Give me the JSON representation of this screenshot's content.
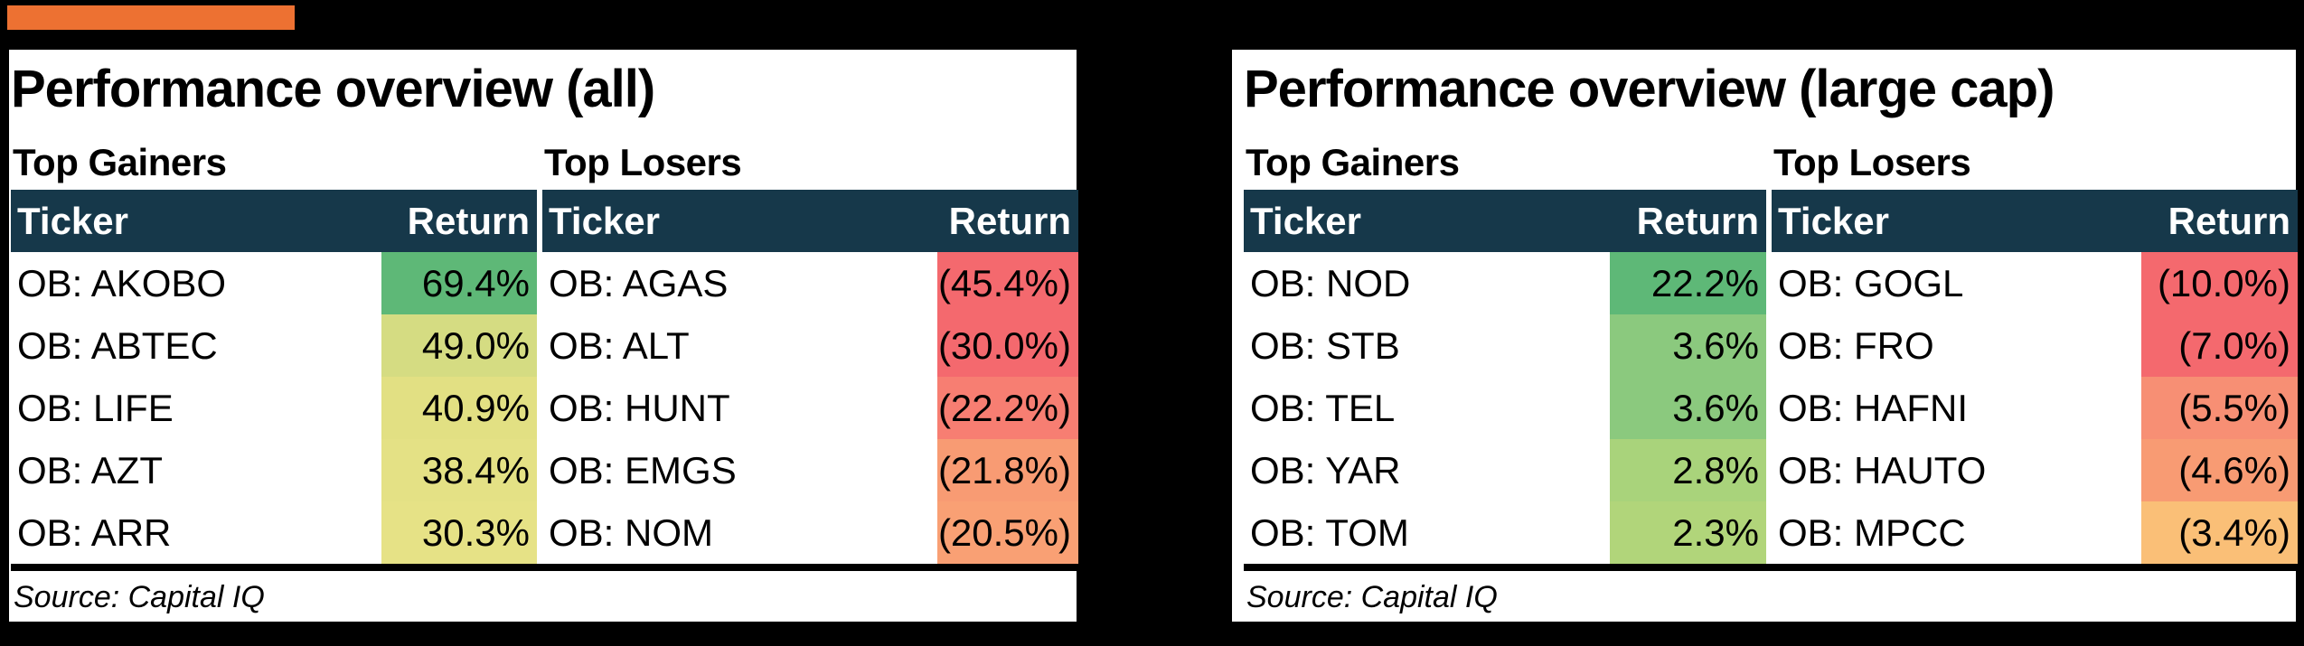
{
  "colors": {
    "accent": "#ED7132",
    "header_bg": "#16384A",
    "page_bg": "#000000",
    "panel_bg": "#FFFFFF"
  },
  "panels": [
    {
      "title": "Performance overview (all)",
      "source": "Source: Capital IQ",
      "tables": [
        {
          "section": "Top Gainers",
          "headers": [
            "Ticker",
            "Return"
          ],
          "rows": [
            {
              "ticker": "OB: AKOBO",
              "return": "69.4%",
              "color": "#5EB877"
            },
            {
              "ticker": "OB: ABTEC",
              "return": "49.0%",
              "color": "#D5DC82"
            },
            {
              "ticker": "OB: LIFE",
              "return": "40.9%",
              "color": "#E2E083"
            },
            {
              "ticker": "OB: AZT",
              "return": "38.4%",
              "color": "#E4E185"
            },
            {
              "ticker": "OB: ARR",
              "return": "30.3%",
              "color": "#E6E286"
            }
          ]
        },
        {
          "section": "Top Losers",
          "headers": [
            "Ticker",
            "Return"
          ],
          "rows": [
            {
              "ticker": "OB: AGAS",
              "return": "(45.4%)",
              "color": "#F4696E"
            },
            {
              "ticker": "OB: ALT",
              "return": "(30.0%)",
              "color": "#F4696E"
            },
            {
              "ticker": "OB: HUNT",
              "return": "(22.2%)",
              "color": "#F77E72"
            },
            {
              "ticker": "OB: EMGS",
              "return": "(21.8%)",
              "color": "#F89B73"
            },
            {
              "ticker": "OB: NOM",
              "return": "(20.5%)",
              "color": "#F9A074"
            }
          ]
        }
      ]
    },
    {
      "title": "Performance overview (large cap)",
      "source": "Source: Capital IQ",
      "tables": [
        {
          "section": "Top Gainers",
          "headers": [
            "Ticker",
            "Return"
          ],
          "rows": [
            {
              "ticker": "OB: NOD",
              "return": "22.2%",
              "color": "#5EB877"
            },
            {
              "ticker": "OB: STB",
              "return": "3.6%",
              "color": "#8BC97E"
            },
            {
              "ticker": "OB: TEL",
              "return": "3.6%",
              "color": "#8BC97E"
            },
            {
              "ticker": "OB: YAR",
              "return": "2.8%",
              "color": "#A9D37B"
            },
            {
              "ticker": "OB: TOM",
              "return": "2.3%",
              "color": "#B1D57A"
            }
          ]
        },
        {
          "section": "Top Losers",
          "headers": [
            "Ticker",
            "Return"
          ],
          "rows": [
            {
              "ticker": "OB: GOGL",
              "return": "(10.0%)",
              "color": "#F4696E"
            },
            {
              "ticker": "OB: FRO",
              "return": "(7.0%)",
              "color": "#F4696E"
            },
            {
              "ticker": "OB: HAFNI",
              "return": "(5.5%)",
              "color": "#F78F74"
            },
            {
              "ticker": "OB: HAUTO",
              "return": "(4.6%)",
              "color": "#F89B73"
            },
            {
              "ticker": "OB: MPCC",
              "return": "(3.4%)",
              "color": "#FABF77"
            }
          ]
        }
      ]
    }
  ],
  "chart_data": [
    {
      "type": "table",
      "title": "Performance overview (all)",
      "source": "Source: Capital IQ",
      "sections": [
        {
          "name": "Top Gainers",
          "columns": [
            "Ticker",
            "Return"
          ],
          "rows": [
            [
              "OB: AKOBO",
              69.4
            ],
            [
              "OB: ABTEC",
              49.0
            ],
            [
              "OB: LIFE",
              40.9
            ],
            [
              "OB: AZT",
              38.4
            ],
            [
              "OB: ARR",
              30.3
            ]
          ]
        },
        {
          "name": "Top Losers",
          "columns": [
            "Ticker",
            "Return"
          ],
          "rows": [
            [
              "OB: AGAS",
              -45.4
            ],
            [
              "OB: ALT",
              -30.0
            ],
            [
              "OB: HUNT",
              -22.2
            ],
            [
              "OB: EMGS",
              -21.8
            ],
            [
              "OB: NOM",
              -20.5
            ]
          ]
        }
      ]
    },
    {
      "type": "table",
      "title": "Performance overview (large cap)",
      "source": "Source: Capital IQ",
      "sections": [
        {
          "name": "Top Gainers",
          "columns": [
            "Ticker",
            "Return"
          ],
          "rows": [
            [
              "OB: NOD",
              22.2
            ],
            [
              "OB: STB",
              3.6
            ],
            [
              "OB: TEL",
              3.6
            ],
            [
              "OB: YAR",
              2.8
            ],
            [
              "OB: TOM",
              2.3
            ]
          ]
        },
        {
          "name": "Top Losers",
          "columns": [
            "Ticker",
            "Return"
          ],
          "rows": [
            [
              "OB: GOGL",
              -10.0
            ],
            [
              "OB: FRO",
              -7.0
            ],
            [
              "OB: HAFNI",
              -5.5
            ],
            [
              "OB: HAUTO",
              -4.6
            ],
            [
              "OB: MPCC",
              -3.4
            ]
          ]
        }
      ]
    }
  ]
}
